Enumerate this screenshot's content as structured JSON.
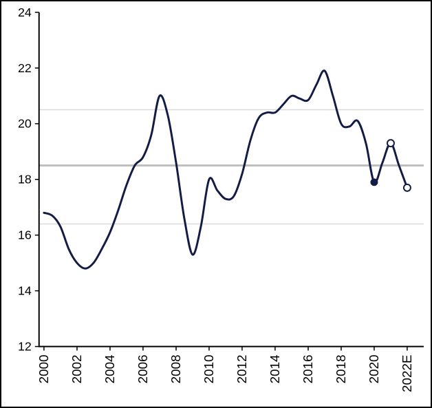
{
  "page": {
    "background": "#ffffff",
    "border_color": "#000000"
  },
  "chart_data": {
    "type": "line",
    "title": "",
    "xlabel": "",
    "ylabel": "",
    "line_color": "#131c45",
    "axis_color": "#000000",
    "tick_label_color": "#000000",
    "xlim": [
      1999.7,
      2023.0
    ],
    "ylim": [
      12,
      24
    ],
    "y_ticks": [
      12,
      14,
      16,
      18,
      20,
      22,
      24
    ],
    "x_ticks": [
      2000,
      2002,
      2004,
      2006,
      2008,
      2010,
      2012,
      2014,
      2016,
      2018,
      2020,
      2022
    ],
    "x_tick_labels": [
      "2000",
      "2002",
      "2004",
      "2006",
      "2008",
      "2010",
      "2012",
      "2014",
      "2016",
      "2018",
      "2020",
      "2022E"
    ],
    "reference_lines": [
      {
        "y": 20.5,
        "color": "#d9d9d9",
        "width": 1.5
      },
      {
        "y": 18.5,
        "color": "#bfbfbf",
        "width": 3
      },
      {
        "y": 16.4,
        "color": "#d9d9d9",
        "width": 1.5
      }
    ],
    "series": [
      {
        "name": "value",
        "x": [
          2000,
          2000.5,
          2001,
          2001.5,
          2002,
          2002.5,
          2003,
          2003.5,
          2004,
          2004.5,
          2005,
          2005.5,
          2006,
          2006.5,
          2007,
          2007.5,
          2008,
          2008.5,
          2009,
          2009.5,
          2010,
          2010.5,
          2011,
          2011.5,
          2012,
          2012.5,
          2013,
          2013.5,
          2014,
          2014.5,
          2015,
          2015.5,
          2016,
          2016.5,
          2017,
          2017.5,
          2018,
          2018.5,
          2019,
          2019.5,
          2020,
          2020.5,
          2021,
          2021.5,
          2022
        ],
        "y": [
          16.8,
          16.7,
          16.3,
          15.5,
          15.0,
          14.8,
          15.0,
          15.5,
          16.1,
          16.9,
          17.8,
          18.5,
          18.8,
          19.6,
          21.0,
          20.3,
          18.6,
          16.6,
          15.3,
          16.3,
          18.0,
          17.6,
          17.3,
          17.4,
          18.2,
          19.4,
          20.2,
          20.4,
          20.4,
          20.7,
          21.0,
          20.9,
          20.85,
          21.4,
          21.9,
          21.0,
          20.0,
          19.9,
          20.1,
          19.3,
          17.9,
          18.6,
          19.3,
          18.5,
          17.7
        ]
      }
    ],
    "markers": [
      {
        "x": 2020,
        "y": 17.9,
        "style": "filled"
      },
      {
        "x": 2021,
        "y": 19.3,
        "style": "open"
      },
      {
        "x": 2022,
        "y": 17.7,
        "style": "open"
      }
    ],
    "grid": "horizontal-reference-lines-only",
    "legend": "none"
  }
}
